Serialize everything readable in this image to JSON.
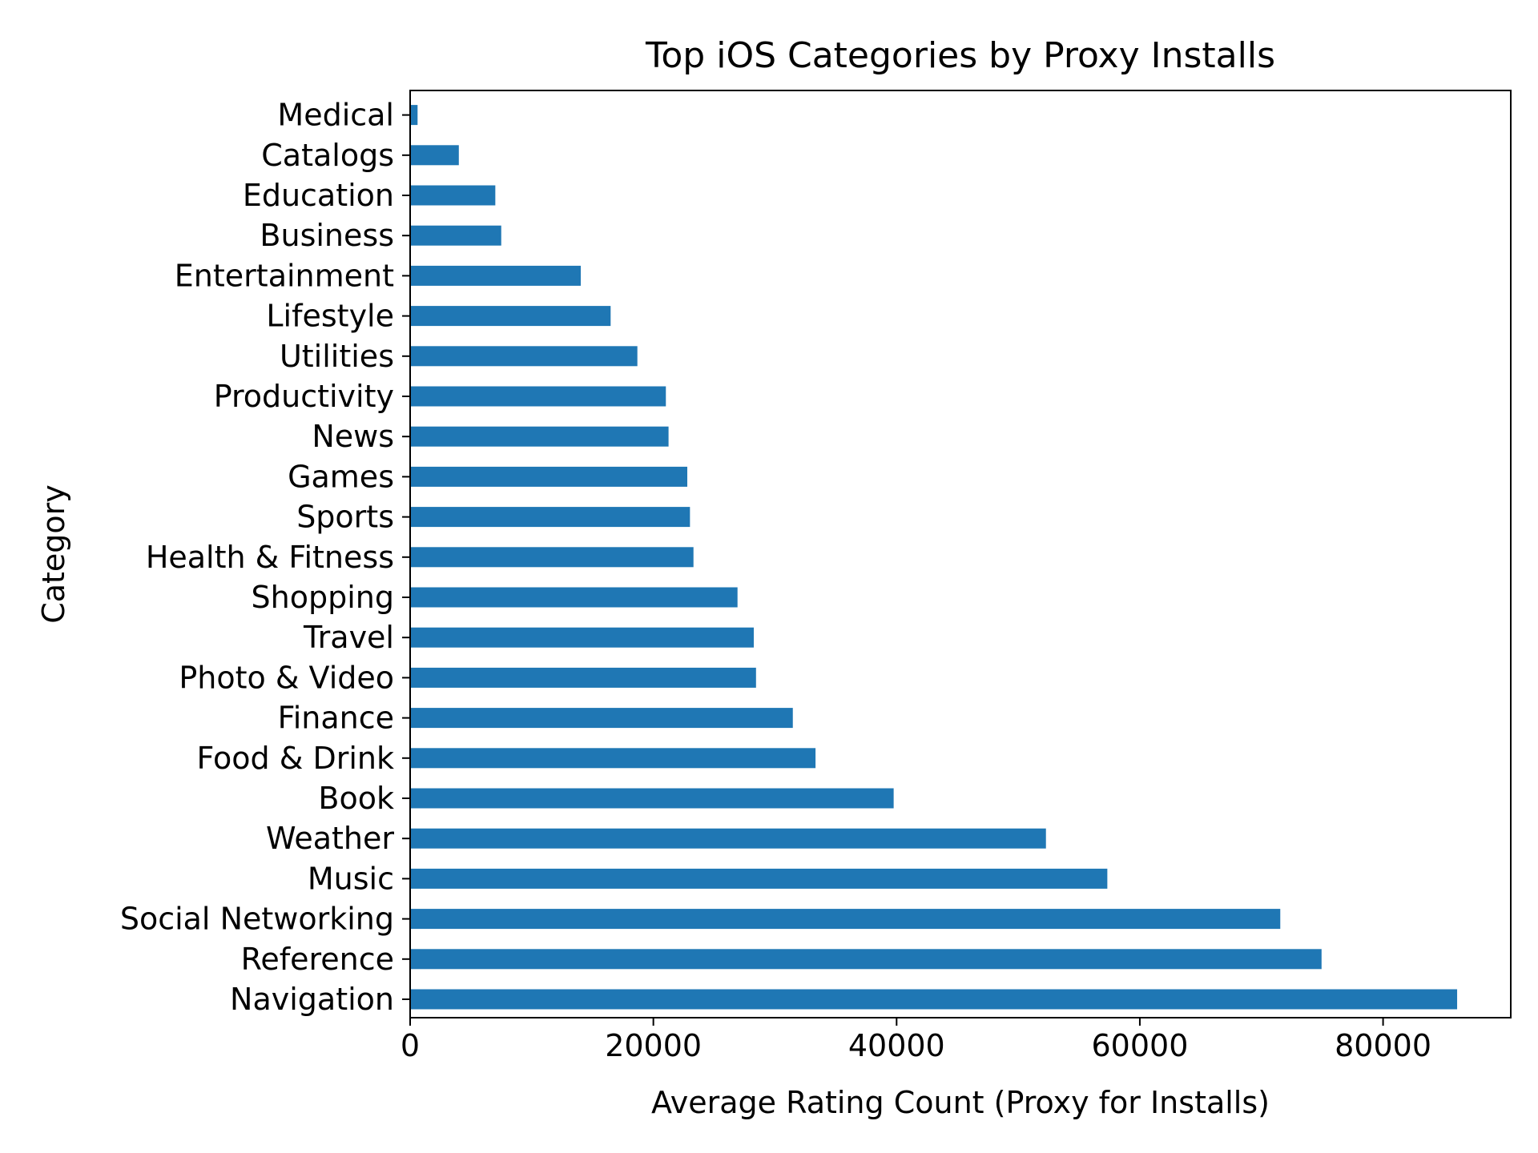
{
  "chart_data": {
    "type": "bar",
    "orientation": "horizontal",
    "title": "Top iOS Categories by Proxy Installs",
    "xlabel": "Average Rating Count (Proxy for Installs)",
    "ylabel": "Category",
    "xlim": [
      0,
      90500
    ],
    "x_ticks": [
      0,
      20000,
      40000,
      60000,
      80000
    ],
    "x_tick_labels": [
      "0",
      "20000",
      "40000",
      "60000",
      "80000"
    ],
    "grid": false,
    "legend": "none",
    "bar_color": "#1f77b4",
    "categories": [
      "Navigation",
      "Reference",
      "Social Networking",
      "Music",
      "Weather",
      "Book",
      "Food & Drink",
      "Finance",
      "Photo & Video",
      "Travel",
      "Shopping",
      "Health & Fitness",
      "Sports",
      "Games",
      "News",
      "Productivity",
      "Utilities",
      "Lifestyle",
      "Entertainment",
      "Business",
      "Education",
      "Catalogs",
      "Medical"
    ],
    "values": [
      86090,
      74942,
      71548,
      57327,
      52280,
      39758,
      33333,
      31467,
      28441,
      28256,
      26919,
      23298,
      23009,
      22789,
      21248,
      21028,
      18685,
      16486,
      14030,
      7491,
      7004,
      4004,
      612
    ]
  }
}
